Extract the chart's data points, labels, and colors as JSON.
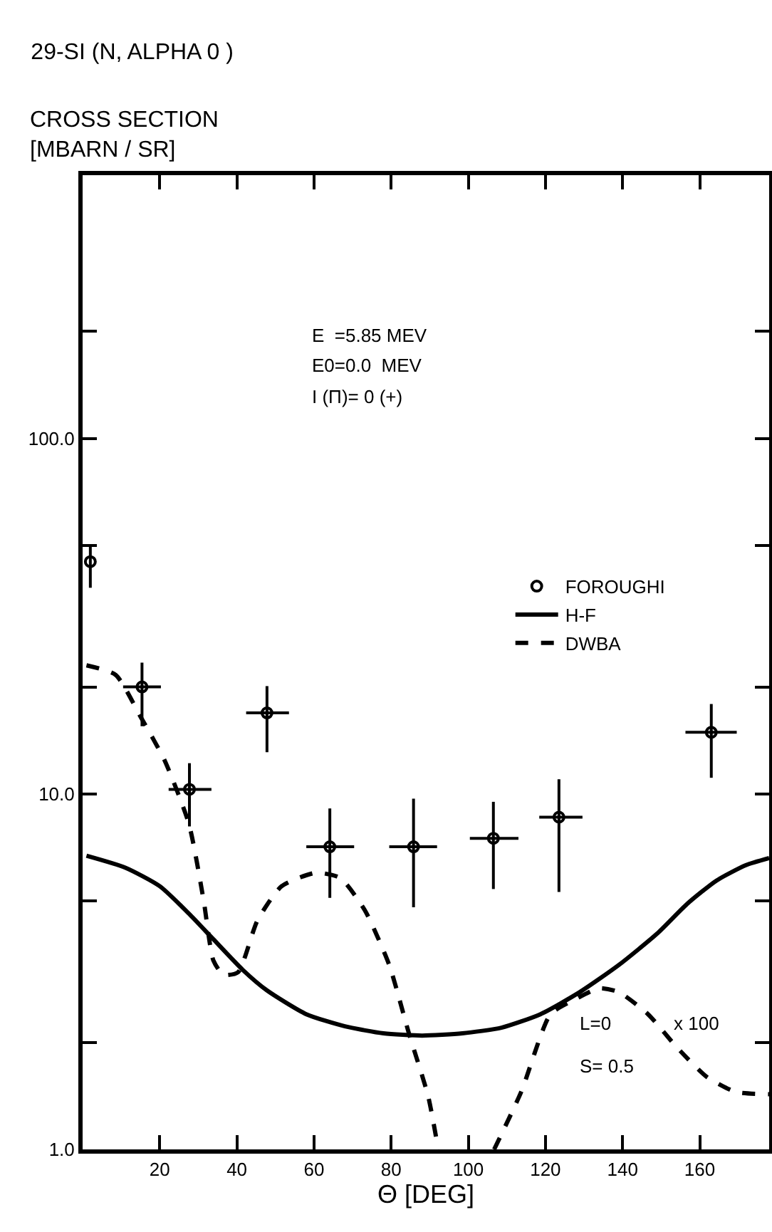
{
  "chart_data": {
    "type": "scatter",
    "title": "29-SI (N, ALPHA 0 )",
    "ylabel": "CROSS SECTION\n[MBARN / SR]",
    "xlabel": "Θ [DEG]",
    "log": "y",
    "xlim": [
      0,
      178
    ],
    "ylim": [
      1,
      550
    ],
    "xticks": [
      20,
      40,
      60,
      80,
      100,
      120,
      140,
      160
    ],
    "yticks": [
      {
        "value": 1,
        "label": "1.0"
      },
      {
        "value": 2,
        "label": null
      },
      {
        "value": 5,
        "label": null
      },
      {
        "value": 10,
        "label": "10.0"
      },
      {
        "value": 20,
        "label": null
      },
      {
        "value": 50,
        "label": null
      },
      {
        "value": 100,
        "label": "100.0"
      },
      {
        "value": 200,
        "label": null
      }
    ],
    "grid": false,
    "legend": "right",
    "series": [
      {
        "name": "FOROUGHI",
        "type": "scatter",
        "marker": "circle",
        "color": "#000000",
        "x": [
          2,
          15.4,
          27.7,
          47.8,
          64.1,
          85.8,
          106.5,
          123.5,
          163
        ],
        "values": [
          45,
          20,
          10.3,
          16.9,
          7.1,
          7.1,
          7.5,
          8.6,
          14.9
        ],
        "errors": [
          [
            38,
            50
          ],
          [
            15.5,
            23.4
          ],
          [
            8.1,
            12.2
          ],
          [
            13.1,
            20.1
          ],
          [
            5.1,
            9.1
          ],
          [
            4.8,
            9.7
          ],
          [
            5.4,
            9.5
          ],
          [
            5.3,
            11
          ],
          [
            11.1,
            17.9
          ]
        ],
        "xerrors": [
          null,
          [
            10.5,
            20.3
          ],
          [
            22.3,
            33.4
          ],
          [
            42.4,
            53.5
          ],
          [
            58,
            70.4
          ],
          [
            79.5,
            91.9
          ],
          [
            100.4,
            113
          ],
          [
            118.4,
            129.6
          ],
          [
            156.3,
            169.6
          ]
        ]
      },
      {
        "name": "H-F",
        "type": "line",
        "line_style": "solid",
        "color": "#000000",
        "x": [
          1,
          11.1,
          20,
          27.6,
          33.9,
          41.5,
          47.8,
          58,
          68,
          78,
          88,
          98.5,
          108.6,
          118.7,
          128.9,
          139,
          149,
          156.7,
          164.3,
          171.9,
          178
        ],
        "values": [
          6.7,
          6.2,
          5.5,
          4.6,
          3.9,
          3.2,
          2.8,
          2.4,
          2.22,
          2.12,
          2.09,
          2.12,
          2.2,
          2.4,
          2.77,
          3.3,
          4.05,
          4.9,
          5.7,
          6.3,
          6.6
        ]
      },
      {
        "name": "DWBA",
        "type": "line",
        "line_style": "dashed",
        "color": "#000000",
        "x": [
          1,
          8.6,
          15,
          21.3,
          27.6,
          31.4,
          33.9,
          36.5,
          40.3,
          45.3,
          51.6,
          60.5,
          66.8,
          73.2,
          79.5,
          84.6,
          89.6,
          92.2,
          100,
          106.7,
          113.7,
          121.3,
          127.6,
          133.9,
          139,
          146.6,
          154.2,
          161.8,
          169.4,
          178
        ],
        "values": [
          23,
          21.6,
          16.5,
          12.4,
          8.2,
          5,
          3.4,
          3.1,
          3.15,
          4.4,
          5.5,
          6,
          5.8,
          4.7,
          3.3,
          2.12,
          1.41,
          1,
          null,
          1,
          1.45,
          2.4,
          2.64,
          2.84,
          2.77,
          2.4,
          1.93,
          1.6,
          1.45,
          1.43
        ]
      }
    ],
    "annotations": [
      "E  =5.85 MEV",
      "E0=0.0  MEV",
      "I (Π)= 0 (+)",
      {
        "text": "x 100",
        "x": 159,
        "y": 2.26
      },
      "L=0",
      "S= 0.5"
    ]
  }
}
